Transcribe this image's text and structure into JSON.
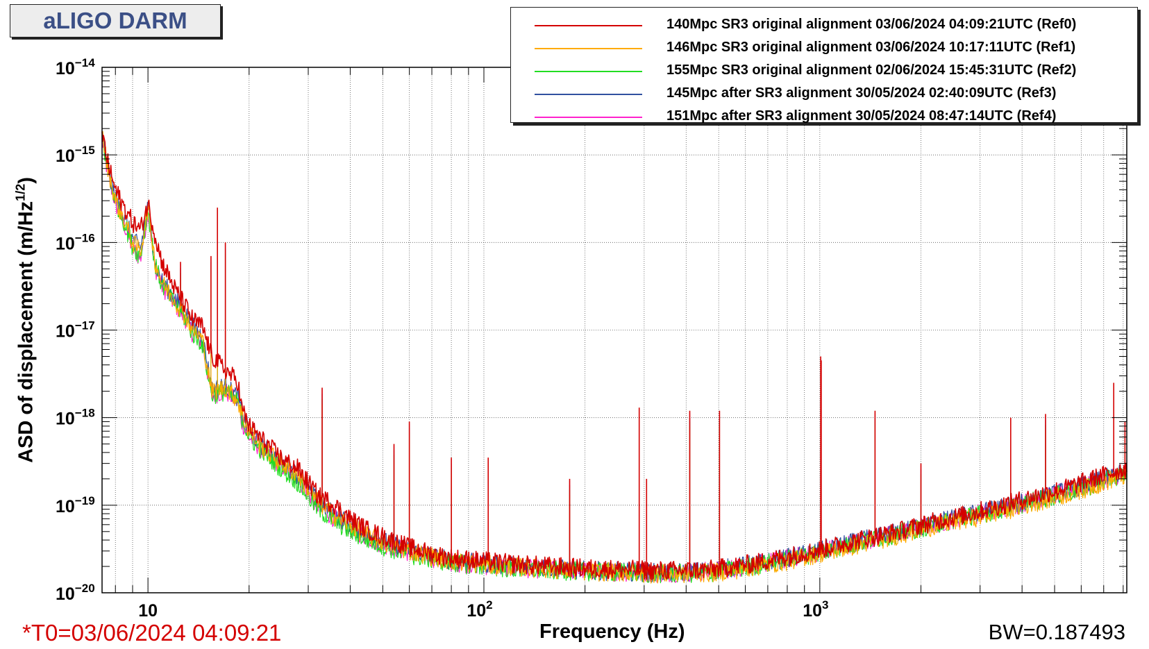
{
  "header": {
    "title": "aLIGO DARM"
  },
  "footer": {
    "t0": "*T0=03/06/2024 04:09:21",
    "bandwidth": "BW=0.187493"
  },
  "chart_data": {
    "type": "line",
    "xlabel": "Frequency (Hz)",
    "ylabel_main": "ASD of displacement (m/Hz",
    "ylabel_sup": "1/2",
    "ylabel_close": ")",
    "x_scale": "log",
    "y_scale": "log",
    "xlim": [
      7.3,
      8200
    ],
    "ylim": [
      1e-20,
      1e-14
    ],
    "grid": true,
    "legend_position": "top-right",
    "x_ticks": [
      {
        "value": 10,
        "base": "10",
        "exp": ""
      },
      {
        "value": 100,
        "base": "10",
        "exp": "2"
      },
      {
        "value": 1000,
        "base": "10",
        "exp": "3"
      }
    ],
    "y_ticks": [
      {
        "value": 1e-14,
        "base": "10",
        "exp": "−14"
      },
      {
        "value": 1e-15,
        "base": "10",
        "exp": "−15"
      },
      {
        "value": 1e-16,
        "base": "10",
        "exp": "−16"
      },
      {
        "value": 1e-17,
        "base": "10",
        "exp": "−17"
      },
      {
        "value": 1e-18,
        "base": "10",
        "exp": "−18"
      },
      {
        "value": 1e-19,
        "base": "10",
        "exp": "−19"
      },
      {
        "value": 1e-20,
        "base": "10",
        "exp": "−20"
      }
    ],
    "series": [
      {
        "name": "140Mpc SR3 original alignment 03/06/2024 04:09:21UTC (Ref0)",
        "color": "#d40000"
      },
      {
        "name": "146Mpc SR3 original alignment 03/06/2024 10:17:11UTC (Ref1)",
        "color": "#ffaa00"
      },
      {
        "name": "155Mpc SR3 original alignment 02/06/2024 15:45:31UTC (Ref2)",
        "color": "#22dd22"
      },
      {
        "name": "145Mpc after SR3 alignment 30/05/2024 02:40:09UTC (Ref3)",
        "color": "#3050a0"
      },
      {
        "name": "151Mpc after SR3 alignment 30/05/2024 08:47:14UTC (Ref4)",
        "color": "#ff22cc"
      }
    ],
    "curve_points": {
      "x": [
        7.3,
        7.6,
        8.0,
        8.5,
        9.0,
        9.5,
        10.0,
        10.5,
        11,
        12,
        13,
        13.6,
        14.5,
        15.5,
        17,
        18.5,
        19,
        20,
        22,
        25,
        28,
        32,
        36,
        40,
        45,
        50,
        60,
        70,
        80,
        100,
        130,
        160,
        200,
        260,
        320,
        400,
        480,
        550,
        650,
        800,
        1000,
        1300,
        1700,
        2200,
        2800,
        3500,
        4500,
        5500,
        6500,
        7500,
        8200
      ],
      "series": [
        [
          1.8e-15,
          8e-16,
          4e-16,
          2.5e-16,
          1.7e-16,
          1.4e-16,
          2.8e-16,
          1.2e-16,
          6e-17,
          3e-17,
          1.8e-17,
          1.3e-17,
          1.1e-17,
          5e-18,
          3.5e-18,
          2.6e-18,
          1.3e-18,
          8e-19,
          5.5e-19,
          3.4e-19,
          2.6e-19,
          1.3e-19,
          1e-19,
          7e-20,
          5.2e-20,
          4.4e-20,
          3.3e-20,
          2.8e-20,
          2.5e-20,
          2.3e-20,
          2.1e-20,
          2e-20,
          1.9e-20,
          1.85e-20,
          1.8e-20,
          1.8e-20,
          1.85e-20,
          2e-20,
          2.2e-20,
          2.6e-20,
          3.1e-20,
          4e-20,
          5e-20,
          6.5e-20,
          8e-20,
          1e-19,
          1.3e-19,
          1.6e-19,
          2e-19,
          2.4e-19,
          2.6e-19
        ],
        [
          1.7e-15,
          7e-16,
          3e-16,
          1.8e-16,
          1e-16,
          8e-17,
          2.5e-16,
          6e-17,
          3.5e-17,
          2.2e-17,
          1.4e-17,
          1e-17,
          8e-18,
          2e-18,
          2.2e-18,
          1.6e-18,
          1.1e-18,
          7e-19,
          4.5e-19,
          3e-19,
          2.2e-19,
          1.1e-19,
          7.5e-20,
          6e-20,
          4.5e-20,
          3.8e-20,
          3e-20,
          2.6e-20,
          2.3e-20,
          2.1e-20,
          1.95e-20,
          1.85e-20,
          1.75e-20,
          1.7e-20,
          1.65e-20,
          1.65e-20,
          1.7e-20,
          1.8e-20,
          2e-20,
          2.3e-20,
          2.8e-20,
          3.5e-20,
          4.5e-20,
          5.8e-20,
          7e-20,
          8.5e-20,
          1.1e-19,
          1.35e-19,
          1.65e-19,
          2e-19,
          2.2e-19
        ],
        [
          1.6e-15,
          6.5e-16,
          3e-16,
          1.7e-16,
          9e-17,
          7e-17,
          2.4e-16,
          5.5e-17,
          3.3e-17,
          2e-17,
          1.3e-17,
          9e-18,
          7e-18,
          1.8e-18,
          2e-18,
          1.5e-18,
          1e-18,
          6e-19,
          4e-19,
          2.6e-19,
          1.8e-19,
          9e-20,
          6.5e-20,
          5e-20,
          4e-20,
          3.4e-20,
          2.7e-20,
          2.4e-20,
          2.2e-20,
          2e-20,
          1.85e-20,
          1.8e-20,
          1.75e-20,
          1.7e-20,
          1.65e-20,
          1.65e-20,
          1.7e-20,
          1.85e-20,
          2.05e-20,
          2.4e-20,
          2.9e-20,
          3.7e-20,
          4.7e-20,
          6e-20,
          7.5e-20,
          9e-20,
          1.15e-19,
          1.4e-19,
          1.7e-19,
          2.1e-19,
          2.3e-19
        ],
        [
          1.7e-15,
          7e-16,
          3.2e-16,
          1.9e-16,
          1.1e-16,
          8.5e-17,
          2.6e-16,
          6e-17,
          3.6e-17,
          2.3e-17,
          1.5e-17,
          1.1e-17,
          8.5e-18,
          2.1e-18,
          2.3e-18,
          1.7e-18,
          1.15e-18,
          7e-19,
          4.6e-19,
          3e-19,
          2.2e-19,
          1.1e-19,
          7.8e-20,
          6e-20,
          4.6e-20,
          3.9e-20,
          3.1e-20,
          2.6e-20,
          2.35e-20,
          2.15e-20,
          2e-20,
          1.9e-20,
          1.8e-20,
          1.75e-20,
          1.7e-20,
          1.72e-20,
          1.8e-20,
          1.95e-20,
          2.15e-20,
          2.5e-20,
          3e-20,
          3.9e-20,
          4.9e-20,
          6.3e-20,
          7.8e-20,
          9.5e-20,
          1.2e-19,
          1.5e-19,
          1.8e-19,
          2.2e-19,
          2.4e-19
        ],
        [
          1.5e-15,
          6e-16,
          2.8e-16,
          1.6e-16,
          8.5e-17,
          6.5e-17,
          2.3e-16,
          5.2e-17,
          3.2e-17,
          2e-17,
          1.3e-17,
          9e-18,
          7e-18,
          1.8e-18,
          2e-18,
          1.5e-18,
          9e-19,
          6e-19,
          4.2e-19,
          2.8e-19,
          2e-19,
          1e-19,
          7e-20,
          5.5e-20,
          4.3e-20,
          3.6e-20,
          2.9e-20,
          2.5e-20,
          2.25e-20,
          2.05e-20,
          1.9e-20,
          1.85e-20,
          1.8e-20,
          1.72e-20,
          1.68e-20,
          1.7e-20,
          1.78e-20,
          1.9e-20,
          2.1e-20,
          2.45e-20,
          2.95e-20,
          3.8e-20,
          4.8e-20,
          6.1e-20,
          7.6e-20,
          9.2e-20,
          1.18e-19,
          1.45e-19,
          1.75e-19,
          2.15e-19,
          2.35e-19
        ]
      ]
    },
    "spectral_lines": [
      {
        "f": 12.5,
        "peak": 6e-17
      },
      {
        "f": 15.4,
        "peak": 7e-17
      },
      {
        "f": 16.1,
        "peak": 2.5e-16
      },
      {
        "f": 17.0,
        "peak": 1e-16
      },
      {
        "f": 33.0,
        "peak": 2.2e-18
      },
      {
        "f": 54.0,
        "peak": 5e-19
      },
      {
        "f": 60.0,
        "peak": 9e-19
      },
      {
        "f": 80.0,
        "peak": 3.5e-19
      },
      {
        "f": 103.0,
        "peak": 3.5e-19
      },
      {
        "f": 180.0,
        "peak": 2e-19
      },
      {
        "f": 290.0,
        "peak": 1.3e-18
      },
      {
        "f": 305.0,
        "peak": 2e-19
      },
      {
        "f": 410.0,
        "peak": 1.2e-18
      },
      {
        "f": 503.0,
        "peak": 1.2e-18
      },
      {
        "f": 1006.0,
        "peak": 5e-18
      },
      {
        "f": 1010.0,
        "peak": 4.5e-18
      },
      {
        "f": 1460.0,
        "peak": 1.2e-18
      },
      {
        "f": 2000.0,
        "peak": 3e-19
      },
      {
        "f": 3700.0,
        "peak": 1e-18
      },
      {
        "f": 4700.0,
        "peak": 1.1e-18
      },
      {
        "f": 7500.0,
        "peak": 2.5e-18
      },
      {
        "f": 8100.0,
        "peak": 9e-19
      }
    ]
  }
}
